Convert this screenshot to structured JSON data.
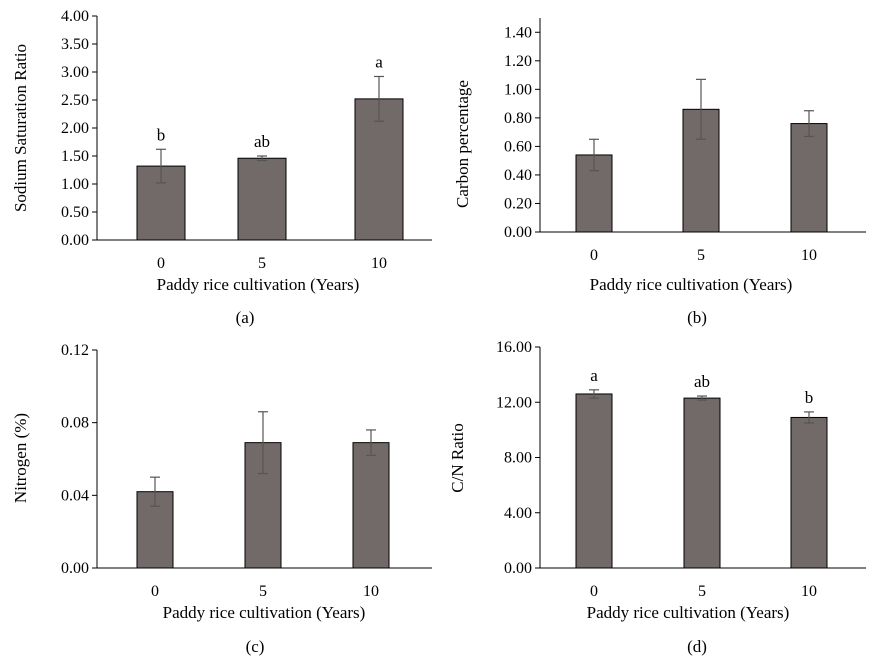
{
  "chart_data": [
    {
      "type": "bar",
      "panel_label": "(a)",
      "ylabel": "Sodium Saturation Ratio",
      "xlabel": "Paddy rice cultivation (Years)",
      "categories": [
        "0",
        "5",
        "10"
      ],
      "values": [
        1.32,
        1.46,
        2.52
      ],
      "errors": [
        0.3,
        0.04,
        0.4
      ],
      "significance": [
        "b",
        "ab",
        "a"
      ],
      "ylim": [
        0,
        4.0
      ],
      "yticks": [
        "0.00",
        "0.50",
        "1.00",
        "1.50",
        "2.00",
        "2.50",
        "3.00",
        "3.50",
        "4.00"
      ],
      "bar_color": "#716a69",
      "grid": false
    },
    {
      "type": "bar",
      "panel_label": "(b)",
      "ylabel": "Carbon percentage",
      "xlabel": "Paddy rice cultivation (Years)",
      "categories": [
        "0",
        "5",
        "10"
      ],
      "values": [
        0.54,
        0.86,
        0.76
      ],
      "errors": [
        0.11,
        0.21,
        0.09
      ],
      "significance": [
        "",
        "",
        ""
      ],
      "ylim": [
        0,
        1.5
      ],
      "yticks": [
        "0.00",
        "0.20",
        "0.40",
        "0.60",
        "0.80",
        "1.00",
        "1.20",
        "1.40"
      ],
      "bar_color": "#716a69",
      "grid": false
    },
    {
      "type": "bar",
      "panel_label": "(c)",
      "ylabel": "Nitrogen (%)",
      "xlabel": "Paddy rice cultivation (Years)",
      "categories": [
        "0",
        "5",
        "10"
      ],
      "values": [
        0.042,
        0.069,
        0.069
      ],
      "errors": [
        0.008,
        0.017,
        0.007
      ],
      "significance": [
        "",
        "",
        ""
      ],
      "ylim": [
        0,
        0.12
      ],
      "yticks": [
        "0.00",
        "0.04",
        "0.08",
        "0.12"
      ],
      "bar_color": "#716a69",
      "grid": false
    },
    {
      "type": "bar",
      "panel_label": "(d)",
      "ylabel": "C/N Ratio",
      "xlabel": "Paddy rice cultivation (Years)",
      "categories": [
        "0",
        "5",
        "10"
      ],
      "values": [
        12.6,
        12.3,
        10.9
      ],
      "errors": [
        0.3,
        0.15,
        0.4
      ],
      "significance": [
        "a",
        "ab",
        "b"
      ],
      "ylim": [
        0,
        16.0
      ],
      "yticks": [
        "0.00",
        "4.00",
        "8.00",
        "12.00",
        "16.00"
      ],
      "bar_color": "#716a69",
      "grid": false
    }
  ]
}
